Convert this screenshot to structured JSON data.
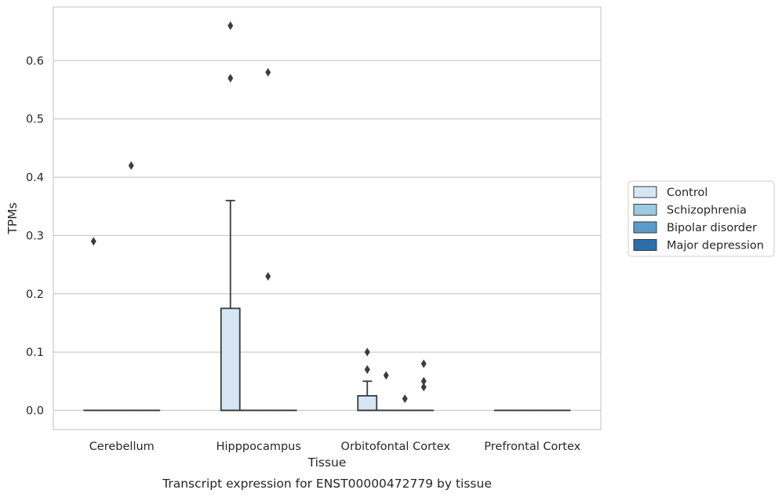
{
  "chart_data": {
    "type": "box",
    "title": "Transcript expression for ENST00000472779 by tissue",
    "xlabel": "Tissue",
    "ylabel": "TPMs",
    "categories": [
      "Cerebellum",
      "Hipppocampus",
      "Orbitofontal Cortex",
      "Prefrontal Cortex"
    ],
    "ylim": [
      -0.033,
      0.692
    ],
    "yticks": [
      "0.0",
      "0.1",
      "0.2",
      "0.3",
      "0.4",
      "0.5",
      "0.6"
    ],
    "grid": true,
    "legend_position": "right",
    "series": [
      {
        "name": "Control",
        "color": "#d6e6f4",
        "boxes": [
          {
            "q1": 0,
            "median": 0,
            "q3": 0,
            "whislo": 0,
            "whishi": 0,
            "fliers": [
              0.29
            ]
          },
          {
            "q1": 0,
            "median": 0,
            "q3": 0.175,
            "whislo": 0,
            "whishi": 0.36,
            "fliers": [
              0.57,
              0.66
            ]
          },
          {
            "q1": 0,
            "median": 0,
            "q3": 0.025,
            "whislo": 0,
            "whishi": 0.05,
            "fliers": [
              0.07,
              0.07,
              0.1
            ]
          },
          {
            "q1": 0,
            "median": 0,
            "q3": 0,
            "whislo": 0,
            "whishi": 0,
            "fliers": []
          }
        ]
      },
      {
        "name": "Schizophrenia",
        "color": "#9ecae1",
        "boxes": [
          {
            "q1": 0,
            "median": 0,
            "q3": 0,
            "whislo": 0,
            "whishi": 0,
            "fliers": []
          },
          {
            "q1": 0,
            "median": 0,
            "q3": 0,
            "whislo": 0,
            "whishi": 0,
            "fliers": []
          },
          {
            "q1": 0,
            "median": 0,
            "q3": 0,
            "whislo": 0,
            "whishi": 0,
            "fliers": [
              0.06
            ]
          },
          {
            "q1": 0,
            "median": 0,
            "q3": 0,
            "whislo": 0,
            "whishi": 0,
            "fliers": []
          }
        ]
      },
      {
        "name": "Bipolar disorder",
        "color": "#5b9bc9",
        "boxes": [
          {
            "q1": 0,
            "median": 0,
            "q3": 0,
            "whislo": 0,
            "whishi": 0,
            "fliers": [
              0.42
            ]
          },
          {
            "q1": 0,
            "median": 0,
            "q3": 0,
            "whislo": 0,
            "whishi": 0,
            "fliers": [
              0.23,
              0.58
            ]
          },
          {
            "q1": 0,
            "median": 0,
            "q3": 0,
            "whislo": 0,
            "whishi": 0,
            "fliers": [
              0.02
            ]
          },
          {
            "q1": 0,
            "median": 0,
            "q3": 0,
            "whislo": 0,
            "whishi": 0,
            "fliers": []
          }
        ]
      },
      {
        "name": "Major depression",
        "color": "#2b6ea9",
        "boxes": [
          {
            "q1": 0,
            "median": 0,
            "q3": 0,
            "whislo": 0,
            "whishi": 0,
            "fliers": []
          },
          {
            "q1": 0,
            "median": 0,
            "q3": 0,
            "whislo": 0,
            "whishi": 0,
            "fliers": []
          },
          {
            "q1": 0,
            "median": 0,
            "q3": 0,
            "whislo": 0,
            "whishi": 0,
            "fliers": [
              0.04,
              0.05,
              0.08
            ]
          },
          {
            "q1": 0,
            "median": 0,
            "q3": 0,
            "whislo": 0,
            "whishi": 0,
            "fliers": []
          }
        ]
      }
    ]
  }
}
